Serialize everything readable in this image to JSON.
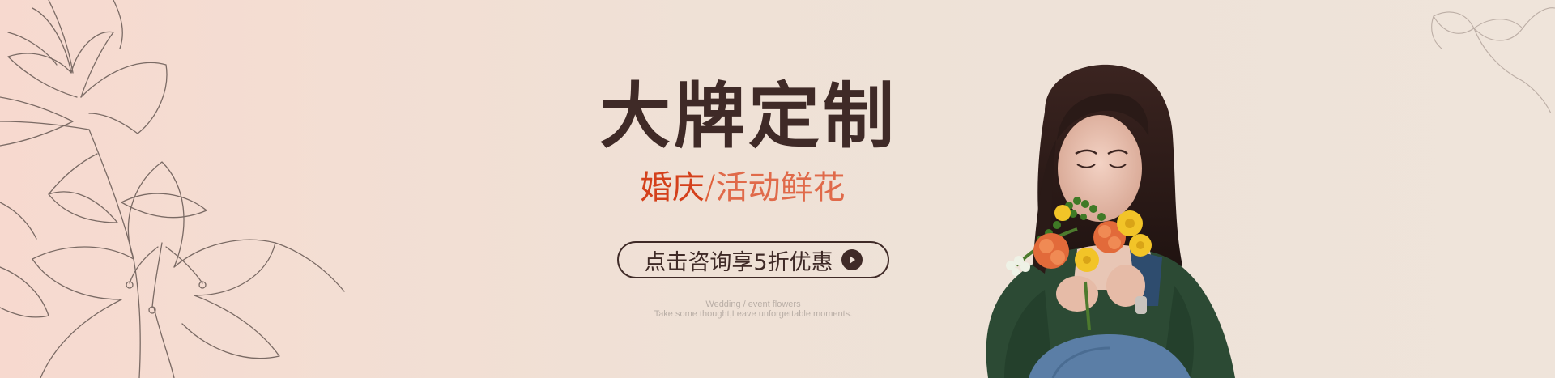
{
  "banner": {
    "headline": "大牌定制",
    "subline_part1": "婚庆",
    "subline_separator": "/",
    "subline_part2": "活动鲜花",
    "cta_label": "点击咨询享5折优惠",
    "caption_line1": "Wedding / event flowers",
    "caption_line2": "Take some thought,Leave unforgettable moments."
  },
  "icons": {
    "cta": "play-circle-icon",
    "decor_left": "lily-line-art-icon",
    "decor_right": "lily-line-art-icon"
  },
  "colors": {
    "background_left": "#f7d9cf",
    "background_right": "#efe4da",
    "headline": "#3f2a27",
    "accent_red": "#d4401b",
    "accent_light": "#e06a4a",
    "caption": "#b9aea6"
  }
}
